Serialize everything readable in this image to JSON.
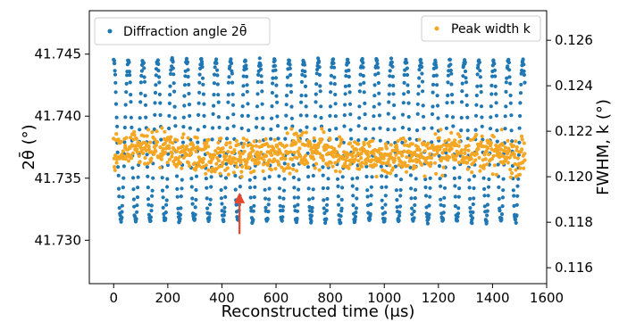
{
  "chart_data": {
    "type": "scatter",
    "xlabel": "Reconstructed time (μs)",
    "ylabel_left": "2θ̄ (°)",
    "ylabel_right": "FWHM, k (°)",
    "xlim": [
      -90,
      1600
    ],
    "ylim_left": [
      41.7265,
      41.7485
    ],
    "ylim_right": [
      0.1153,
      0.1273
    ],
    "x_ticks": [
      0,
      200,
      400,
      600,
      800,
      1000,
      1200,
      1400,
      1600
    ],
    "y_left_ticks": [
      41.73,
      41.735,
      41.74,
      41.745
    ],
    "y_left_tick_labels": [
      "41.730",
      "41.735",
      "41.740",
      "41.745"
    ],
    "y_right_ticks": [
      0.116,
      0.118,
      0.12,
      0.122,
      0.124,
      0.126
    ],
    "y_right_tick_labels": [
      "0.116",
      "0.118",
      "0.120",
      "0.122",
      "0.124",
      "0.126"
    ],
    "grid": false,
    "series": [
      {
        "name": "Diffraction angle 2θ̄",
        "axis": "left",
        "color": "#1f77b4",
        "pattern": "periodic oscillation",
        "period_us": 54,
        "x_range": [
          0,
          1520
        ],
        "y_min": 41.7315,
        "y_max": 41.7445,
        "legend_position": "upper-left"
      },
      {
        "name": "Peak width k",
        "axis": "right",
        "color": "#f5a623",
        "pattern": "noisy band",
        "x_range": [
          0,
          1520
        ],
        "y_center": 0.121,
        "y_spread": 0.0012,
        "legend_position": "upper-right"
      }
    ],
    "annotation": {
      "type": "arrow",
      "color": "#e8462b",
      "x": 465,
      "y_from": 41.7305,
      "y_to": 41.7337
    }
  }
}
